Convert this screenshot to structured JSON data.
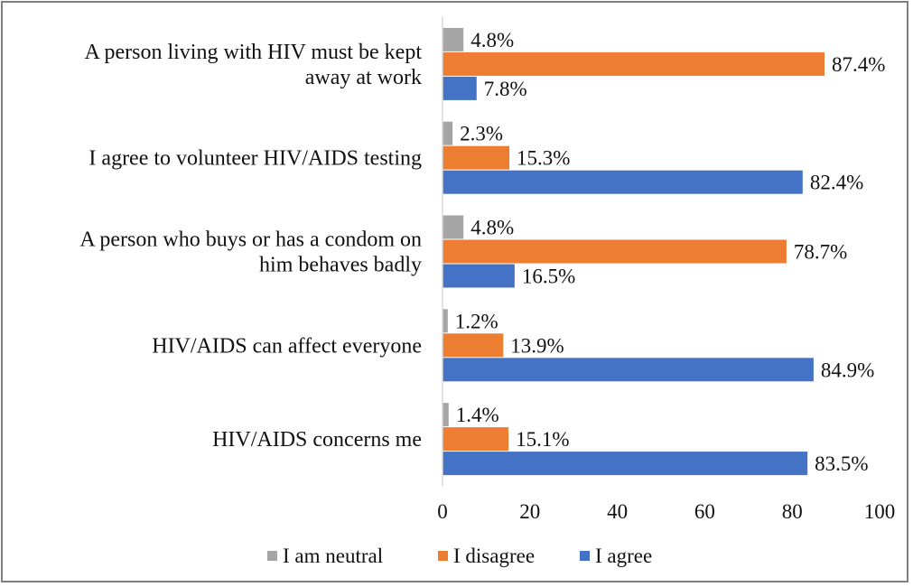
{
  "chart_data": {
    "type": "bar",
    "orientation": "horizontal",
    "categories": [
      [
        "A person living with HIV must be kept",
        "away at work"
      ],
      [
        "I agree to volunteer HIV/AIDS testing"
      ],
      [
        "A person who buys or has a condom on",
        "him behaves badly"
      ],
      [
        "HIV/AIDS can affect everyone"
      ],
      [
        "HIV/AIDS concerns me"
      ]
    ],
    "series": [
      {
        "name": "I am neutral",
        "color": "#a5a5a5",
        "values": [
          4.8,
          2.3,
          4.8,
          1.2,
          1.4
        ],
        "labels": [
          "4.8%",
          "2.3%",
          "4.8%",
          "1.2%",
          "1.4%"
        ]
      },
      {
        "name": "I disagree",
        "color": "#ed7d31",
        "values": [
          87.4,
          15.3,
          78.7,
          13.9,
          15.1
        ],
        "labels": [
          "87.4%",
          "15.3%",
          "78.7%",
          "13.9%",
          "15.1%"
        ]
      },
      {
        "name": "I agree",
        "color": "#4472c4",
        "values": [
          7.8,
          82.4,
          16.5,
          84.9,
          83.5
        ],
        "labels": [
          "7.8%",
          "82.4%",
          "16.5%",
          "84.9%",
          "83.5%"
        ]
      }
    ],
    "x_ticks": [
      "0",
      "20",
      "40",
      "60",
      "80",
      "100"
    ],
    "xlim": [
      0,
      100
    ],
    "grid": false,
    "legend_position": "bottom"
  }
}
